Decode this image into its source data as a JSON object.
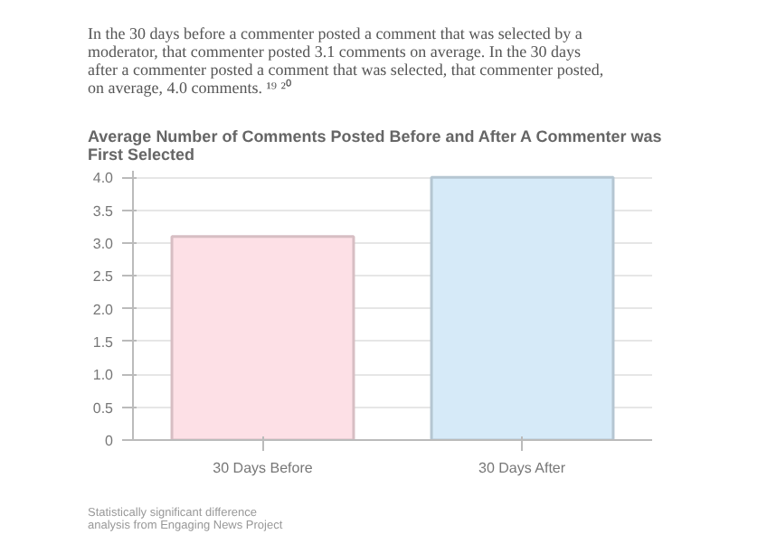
{
  "chart_data": {
    "type": "bar",
    "subtitle": "In the 30 days before a commenter posted a comment that was selected by a moderator, that commenter posted 3.1 comments on average. In the 30 days after a commenter posted a comment that was selected, that commenter posted, on average, 4.0 comments. ¹⁹ ²⁰",
    "title": "Average Number of Comments Posted Before and After A Commenter was First Selected",
    "categories": [
      "30 Days Before",
      "30 Days After"
    ],
    "values": [
      3.1,
      4.0
    ],
    "colors": [
      "#fde0e6",
      "#d6eaf8"
    ],
    "ylim": [
      0,
      4.1
    ],
    "yticks": [
      {
        "value": 0,
        "label": "0"
      },
      0.5,
      {
        "value": 1,
        "label": "1.0"
      },
      1.5,
      {
        "value": 2,
        "label": "2.0"
      },
      2.5,
      {
        "value": 3,
        "label": "3.0"
      },
      3.5,
      {
        "value": 4,
        "label": "4.0"
      }
    ],
    "grid": "y",
    "annotations": [
      "Statistically significant difference",
      "analysis from Engaging News Project"
    ]
  }
}
